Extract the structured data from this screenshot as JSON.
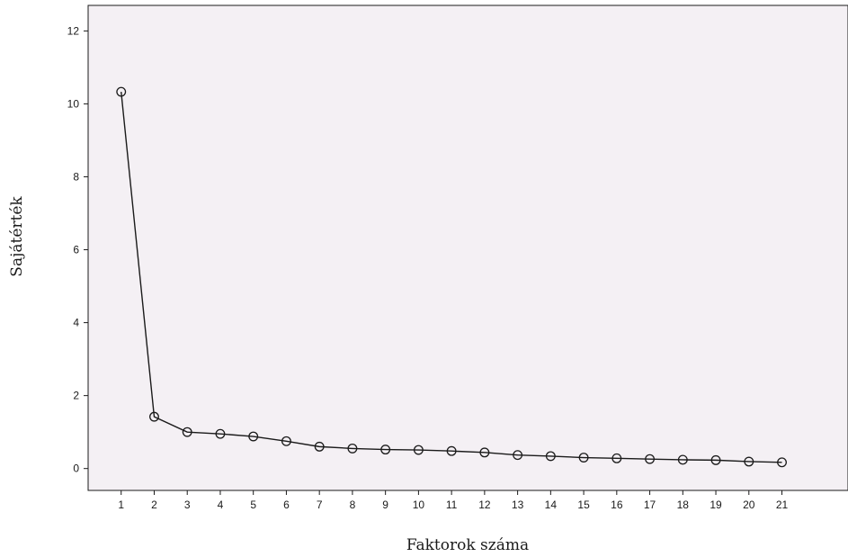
{
  "chart_data": {
    "type": "line",
    "xlabel": "Faktorok száma",
    "ylabel": "Sajátérték",
    "x": [
      1,
      2,
      3,
      4,
      5,
      6,
      7,
      8,
      9,
      10,
      11,
      12,
      13,
      14,
      15,
      16,
      17,
      18,
      19,
      20,
      21
    ],
    "x_tick_labels": [
      "1",
      "2",
      "3",
      "4",
      "5",
      "6",
      "7",
      "8",
      "9",
      "10",
      "11",
      "12",
      "13",
      "14",
      "15",
      "16",
      "17",
      "18",
      "19",
      "20",
      "21"
    ],
    "series": [
      {
        "values": [
          10.33,
          1.42,
          1.0,
          0.95,
          0.88,
          0.75,
          0.6,
          0.55,
          0.52,
          0.51,
          0.48,
          0.44,
          0.37,
          0.34,
          0.3,
          0.28,
          0.26,
          0.24,
          0.23,
          0.19,
          0.17
        ]
      }
    ],
    "xlim": [
      0,
      23
    ],
    "ylim": [
      -0.6,
      12.7
    ],
    "y_ticks": [
      0,
      2,
      4,
      6,
      8,
      10,
      12
    ],
    "y_tick_labels": [
      "0",
      "2",
      "4",
      "6",
      "8",
      "10",
      "12"
    ],
    "marker": "open-circle",
    "grid": false,
    "colors": {
      "plot_background": "#f4f0f4",
      "line": "#1a1a1a"
    }
  }
}
